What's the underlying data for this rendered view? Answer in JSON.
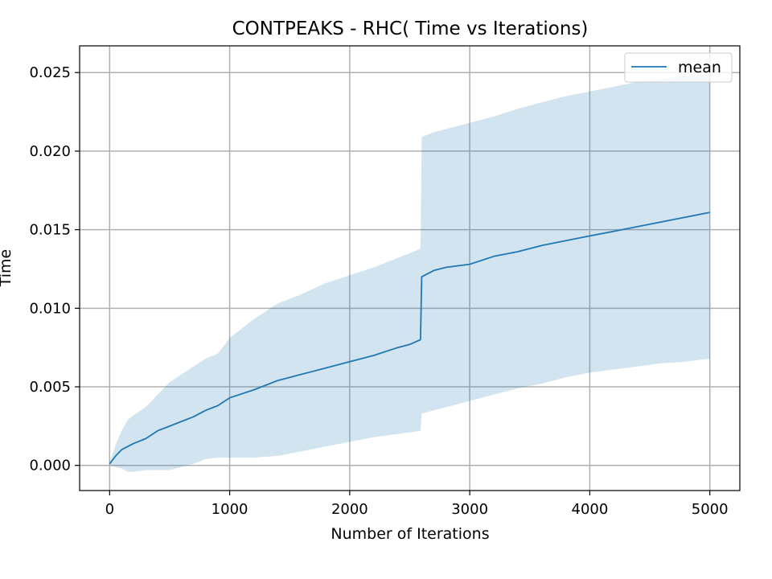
{
  "chart_data": {
    "type": "line",
    "title": "CONTPEAKS - RHC( Time vs Iterations)",
    "xlabel": "Number of Iterations",
    "ylabel": "Time",
    "xlim": [
      -250,
      5250
    ],
    "ylim": [
      -0.0016,
      0.0267
    ],
    "xticks": [
      0,
      1000,
      2000,
      3000,
      4000,
      5000
    ],
    "xtick_labels": [
      "0",
      "1000",
      "2000",
      "3000",
      "4000",
      "5000"
    ],
    "yticks": [
      0.0,
      0.005,
      0.01,
      0.015,
      0.02,
      0.025
    ],
    "ytick_labels": [
      "0.000",
      "0.005",
      "0.010",
      "0.015",
      "0.020",
      "0.025"
    ],
    "grid": true,
    "legend_position": "top-right",
    "line_color": "#1f77b4",
    "band_color": "#1f77b4",
    "series": [
      {
        "name": "mean",
        "x": [
          0,
          50,
          100,
          150,
          200,
          300,
          400,
          500,
          600,
          700,
          800,
          900,
          1000,
          1200,
          1400,
          1600,
          1800,
          2000,
          2200,
          2400,
          2500,
          2590,
          2600,
          2700,
          2800,
          3000,
          3200,
          3400,
          3600,
          3800,
          4000,
          4200,
          4400,
          4600,
          4800,
          5000
        ],
        "y": [
          0.0001,
          0.0006,
          0.001,
          0.0012,
          0.0014,
          0.0017,
          0.0022,
          0.0025,
          0.0028,
          0.0031,
          0.0035,
          0.0038,
          0.0043,
          0.0048,
          0.0054,
          0.0058,
          0.0062,
          0.0066,
          0.007,
          0.0075,
          0.0077,
          0.008,
          0.012,
          0.0124,
          0.0126,
          0.0128,
          0.0133,
          0.0136,
          0.014,
          0.0143,
          0.0146,
          0.0149,
          0.0152,
          0.0155,
          0.0158,
          0.0161
        ]
      }
    ],
    "band": {
      "x": [
        0,
        50,
        100,
        150,
        200,
        300,
        400,
        500,
        600,
        700,
        800,
        900,
        1000,
        1200,
        1400,
        1600,
        1800,
        2000,
        2200,
        2400,
        2500,
        2590,
        2600,
        2700,
        2800,
        3000,
        3200,
        3400,
        3600,
        3800,
        4000,
        4200,
        4400,
        4600,
        4800,
        5000
      ],
      "upper": [
        0.0002,
        0.0013,
        0.0022,
        0.0029,
        0.0032,
        0.0037,
        0.0045,
        0.0053,
        0.0058,
        0.0063,
        0.0068,
        0.0071,
        0.0081,
        0.0093,
        0.0103,
        0.0109,
        0.0116,
        0.0121,
        0.0126,
        0.0132,
        0.0135,
        0.0138,
        0.0209,
        0.0212,
        0.0214,
        0.0218,
        0.0222,
        0.0227,
        0.0231,
        0.0235,
        0.0238,
        0.0241,
        0.0244,
        0.0246,
        0.0248,
        0.0249
      ],
      "lower": [
        0.0,
        -0.0001,
        -0.0002,
        -0.0004,
        -0.0004,
        -0.0003,
        -0.0003,
        -0.0003,
        -0.0001,
        0.0001,
        0.0004,
        0.0005,
        0.0005,
        0.0005,
        0.0006,
        0.0009,
        0.0012,
        0.0015,
        0.0018,
        0.002,
        0.0021,
        0.0022,
        0.0033,
        0.0035,
        0.0037,
        0.0041,
        0.0045,
        0.0049,
        0.0052,
        0.0056,
        0.0059,
        0.0061,
        0.0063,
        0.0065,
        0.0066,
        0.0068
      ]
    }
  }
}
